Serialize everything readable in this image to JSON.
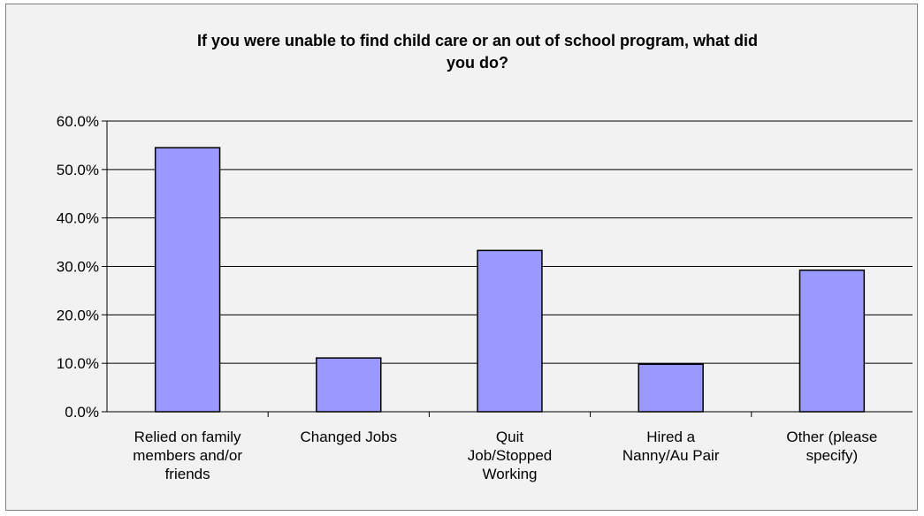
{
  "chart_data": {
    "type": "bar",
    "title_lines": [
      "If you were unable to find child care or an out of school program, what did",
      "you do?"
    ],
    "categories": [
      [
        "Relied on family",
        "members and/or",
        "friends"
      ],
      [
        "Changed Jobs"
      ],
      [
        "Quit",
        "Job/Stopped",
        "Working"
      ],
      [
        "Hired a",
        "Nanny/Au Pair"
      ],
      [
        "Other (please",
        "specify)"
      ]
    ],
    "values": [
      54.5,
      11.1,
      33.3,
      9.8,
      29.2
    ],
    "ylim": [
      0,
      60
    ],
    "yticks": [
      "0.0%",
      "10.0%",
      "20.0%",
      "30.0%",
      "40.0%",
      "50.0%",
      "60.0%"
    ],
    "ytick_values": [
      0,
      10,
      20,
      30,
      40,
      50,
      60
    ],
    "grid": true,
    "legend": "none",
    "colors": {
      "bar_fill": "#9999ff",
      "bar_stroke": "#000000",
      "gridline": "#000000",
      "background": "#f2f2f2"
    }
  }
}
